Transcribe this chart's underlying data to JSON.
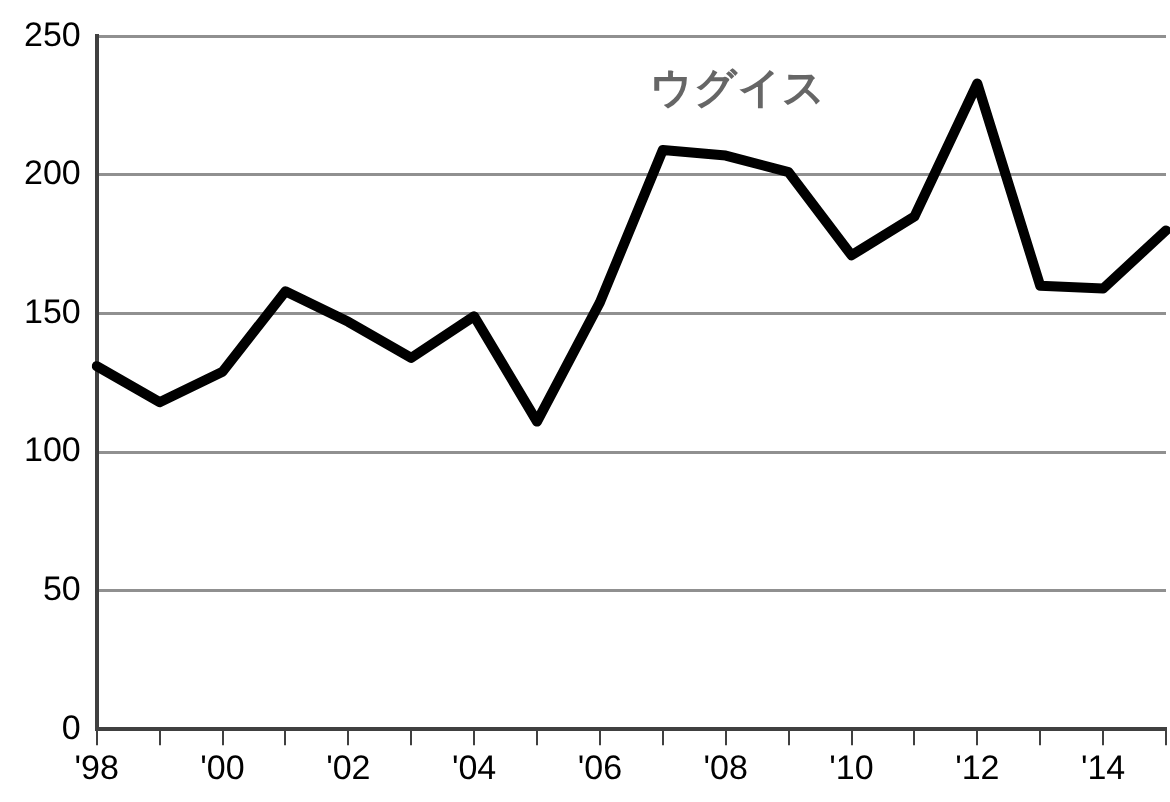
{
  "chart_data": {
    "type": "line",
    "title": "ウグイス",
    "categories": [
      "'98",
      null,
      "'00",
      null,
      "'02",
      null,
      "'04",
      null,
      "'06",
      null,
      "'08",
      null,
      "'10",
      null,
      "'12",
      null,
      "'14",
      null
    ],
    "values": [
      131,
      118,
      129,
      158,
      147,
      134,
      149,
      111,
      154,
      209,
      207,
      201,
      171,
      185,
      233,
      160,
      159,
      180
    ],
    "color": "#000000",
    "marker": "none",
    "line_style": "solid",
    "ylim": [
      0,
      250
    ],
    "yticks": [
      0,
      50,
      100,
      150,
      200,
      250
    ],
    "grid": "y",
    "legend": false
  }
}
